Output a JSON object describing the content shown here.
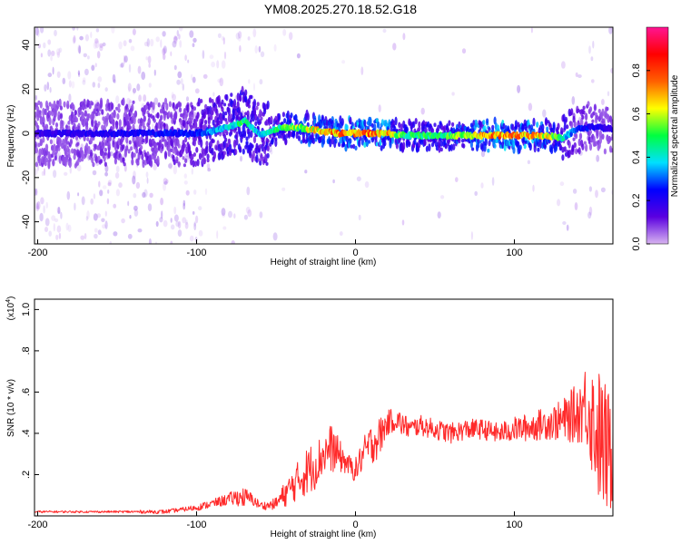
{
  "figure_title": "YM08.2025.270.18.52.G18",
  "chart_data": [
    {
      "type": "heatmap",
      "xlabel": "Height of straight line (km)",
      "ylabel": "Frequency (Hz)",
      "xlim": [
        -202,
        162
      ],
      "ylim": [
        -50,
        48
      ],
      "xticks": [
        -200,
        -100,
        0,
        100
      ],
      "yticks": [
        -40,
        -20,
        0,
        20,
        40
      ],
      "colorbar": {
        "label": "Normalized spectral amplitude",
        "range": [
          0,
          1
        ],
        "ticks": [
          0.0,
          0.2,
          0.4,
          0.6,
          0.8
        ],
        "tick_labels": [
          "0.0",
          "0.2",
          "0.4",
          "0.6",
          "0.8"
        ],
        "colormap": [
          "#d8b4f0",
          "#5a00e0",
          "#0000ff",
          "#00e0ff",
          "#00ff40",
          "#ffff00",
          "#ff6000",
          "#ff0000",
          "#ff1493"
        ]
      },
      "ridge": {
        "description": "dominant frequency ridge",
        "x": [
          -200,
          -150,
          -100,
          -90,
          -80,
          -75,
          -70,
          -60,
          -50,
          -40,
          -30,
          -20,
          -10,
          0,
          10,
          20,
          30,
          40,
          50,
          60,
          70,
          80,
          90,
          100,
          110,
          120,
          130,
          140,
          150,
          160
        ],
        "y": [
          0,
          0,
          0,
          1,
          3,
          4,
          6,
          -1,
          2,
          3,
          2,
          1,
          0,
          0,
          0,
          0,
          -1,
          -1,
          -1,
          -1,
          -1,
          -1,
          -1,
          -1,
          -1,
          -1,
          -2,
          2,
          3,
          2
        ],
        "amplitude": [
          0.2,
          0.25,
          0.3,
          0.4,
          0.45,
          0.5,
          0.55,
          0.4,
          0.55,
          0.6,
          0.7,
          0.8,
          0.85,
          0.85,
          0.85,
          0.8,
          0.55,
          0.55,
          0.55,
          0.6,
          0.7,
          0.8,
          0.85,
          0.85,
          0.8,
          0.75,
          0.5,
          0.3,
          0.25,
          0.2
        ]
      }
    },
    {
      "type": "line",
      "xlabel": "Height of straight line (km)",
      "ylabel": "SNR (10 * v/v)",
      "scale_label": "(x10",
      "scale_exponent": "4",
      "xlim": [
        -202,
        162
      ],
      "ylim": [
        0,
        1.05
      ],
      "xticks": [
        -200,
        -100,
        0,
        100
      ],
      "yticks": [
        0.2,
        0.4,
        0.6,
        0.8,
        1.0
      ],
      "color": "#ff2a2a",
      "series": [
        {
          "x": [
            -200,
            -150,
            -120,
            -110,
            -100,
            -90,
            -80,
            -75,
            -70,
            -65,
            -60,
            -55,
            -50,
            -45,
            -40,
            -35,
            -30,
            -25,
            -20,
            -15,
            -10,
            -5,
            0,
            5,
            10,
            15,
            20,
            25,
            30,
            35,
            40,
            50,
            60,
            70,
            80,
            90,
            100,
            110,
            120,
            130,
            140,
            145,
            150,
            155,
            160
          ],
          "y": [
            0.02,
            0.02,
            0.02,
            0.03,
            0.04,
            0.06,
            0.08,
            0.09,
            0.09,
            0.08,
            0.05,
            0.05,
            0.06,
            0.1,
            0.14,
            0.18,
            0.22,
            0.25,
            0.3,
            0.33,
            0.29,
            0.25,
            0.22,
            0.3,
            0.35,
            0.38,
            0.45,
            0.47,
            0.44,
            0.42,
            0.44,
            0.42,
            0.4,
            0.42,
            0.42,
            0.4,
            0.42,
            0.43,
            0.45,
            0.46,
            0.5,
            0.55,
            0.45,
            0.35,
            0.3
          ],
          "spread": [
            0.005,
            0.005,
            0.01,
            0.01,
            0.015,
            0.02,
            0.03,
            0.04,
            0.05,
            0.03,
            0.02,
            0.02,
            0.03,
            0.06,
            0.08,
            0.1,
            0.12,
            0.12,
            0.1,
            0.12,
            0.08,
            0.05,
            0.06,
            0.08,
            0.1,
            0.1,
            0.06,
            0.06,
            0.06,
            0.05,
            0.05,
            0.05,
            0.05,
            0.05,
            0.05,
            0.05,
            0.06,
            0.07,
            0.08,
            0.1,
            0.15,
            0.2,
            0.3,
            0.35,
            0.3
          ]
        }
      ]
    }
  ]
}
